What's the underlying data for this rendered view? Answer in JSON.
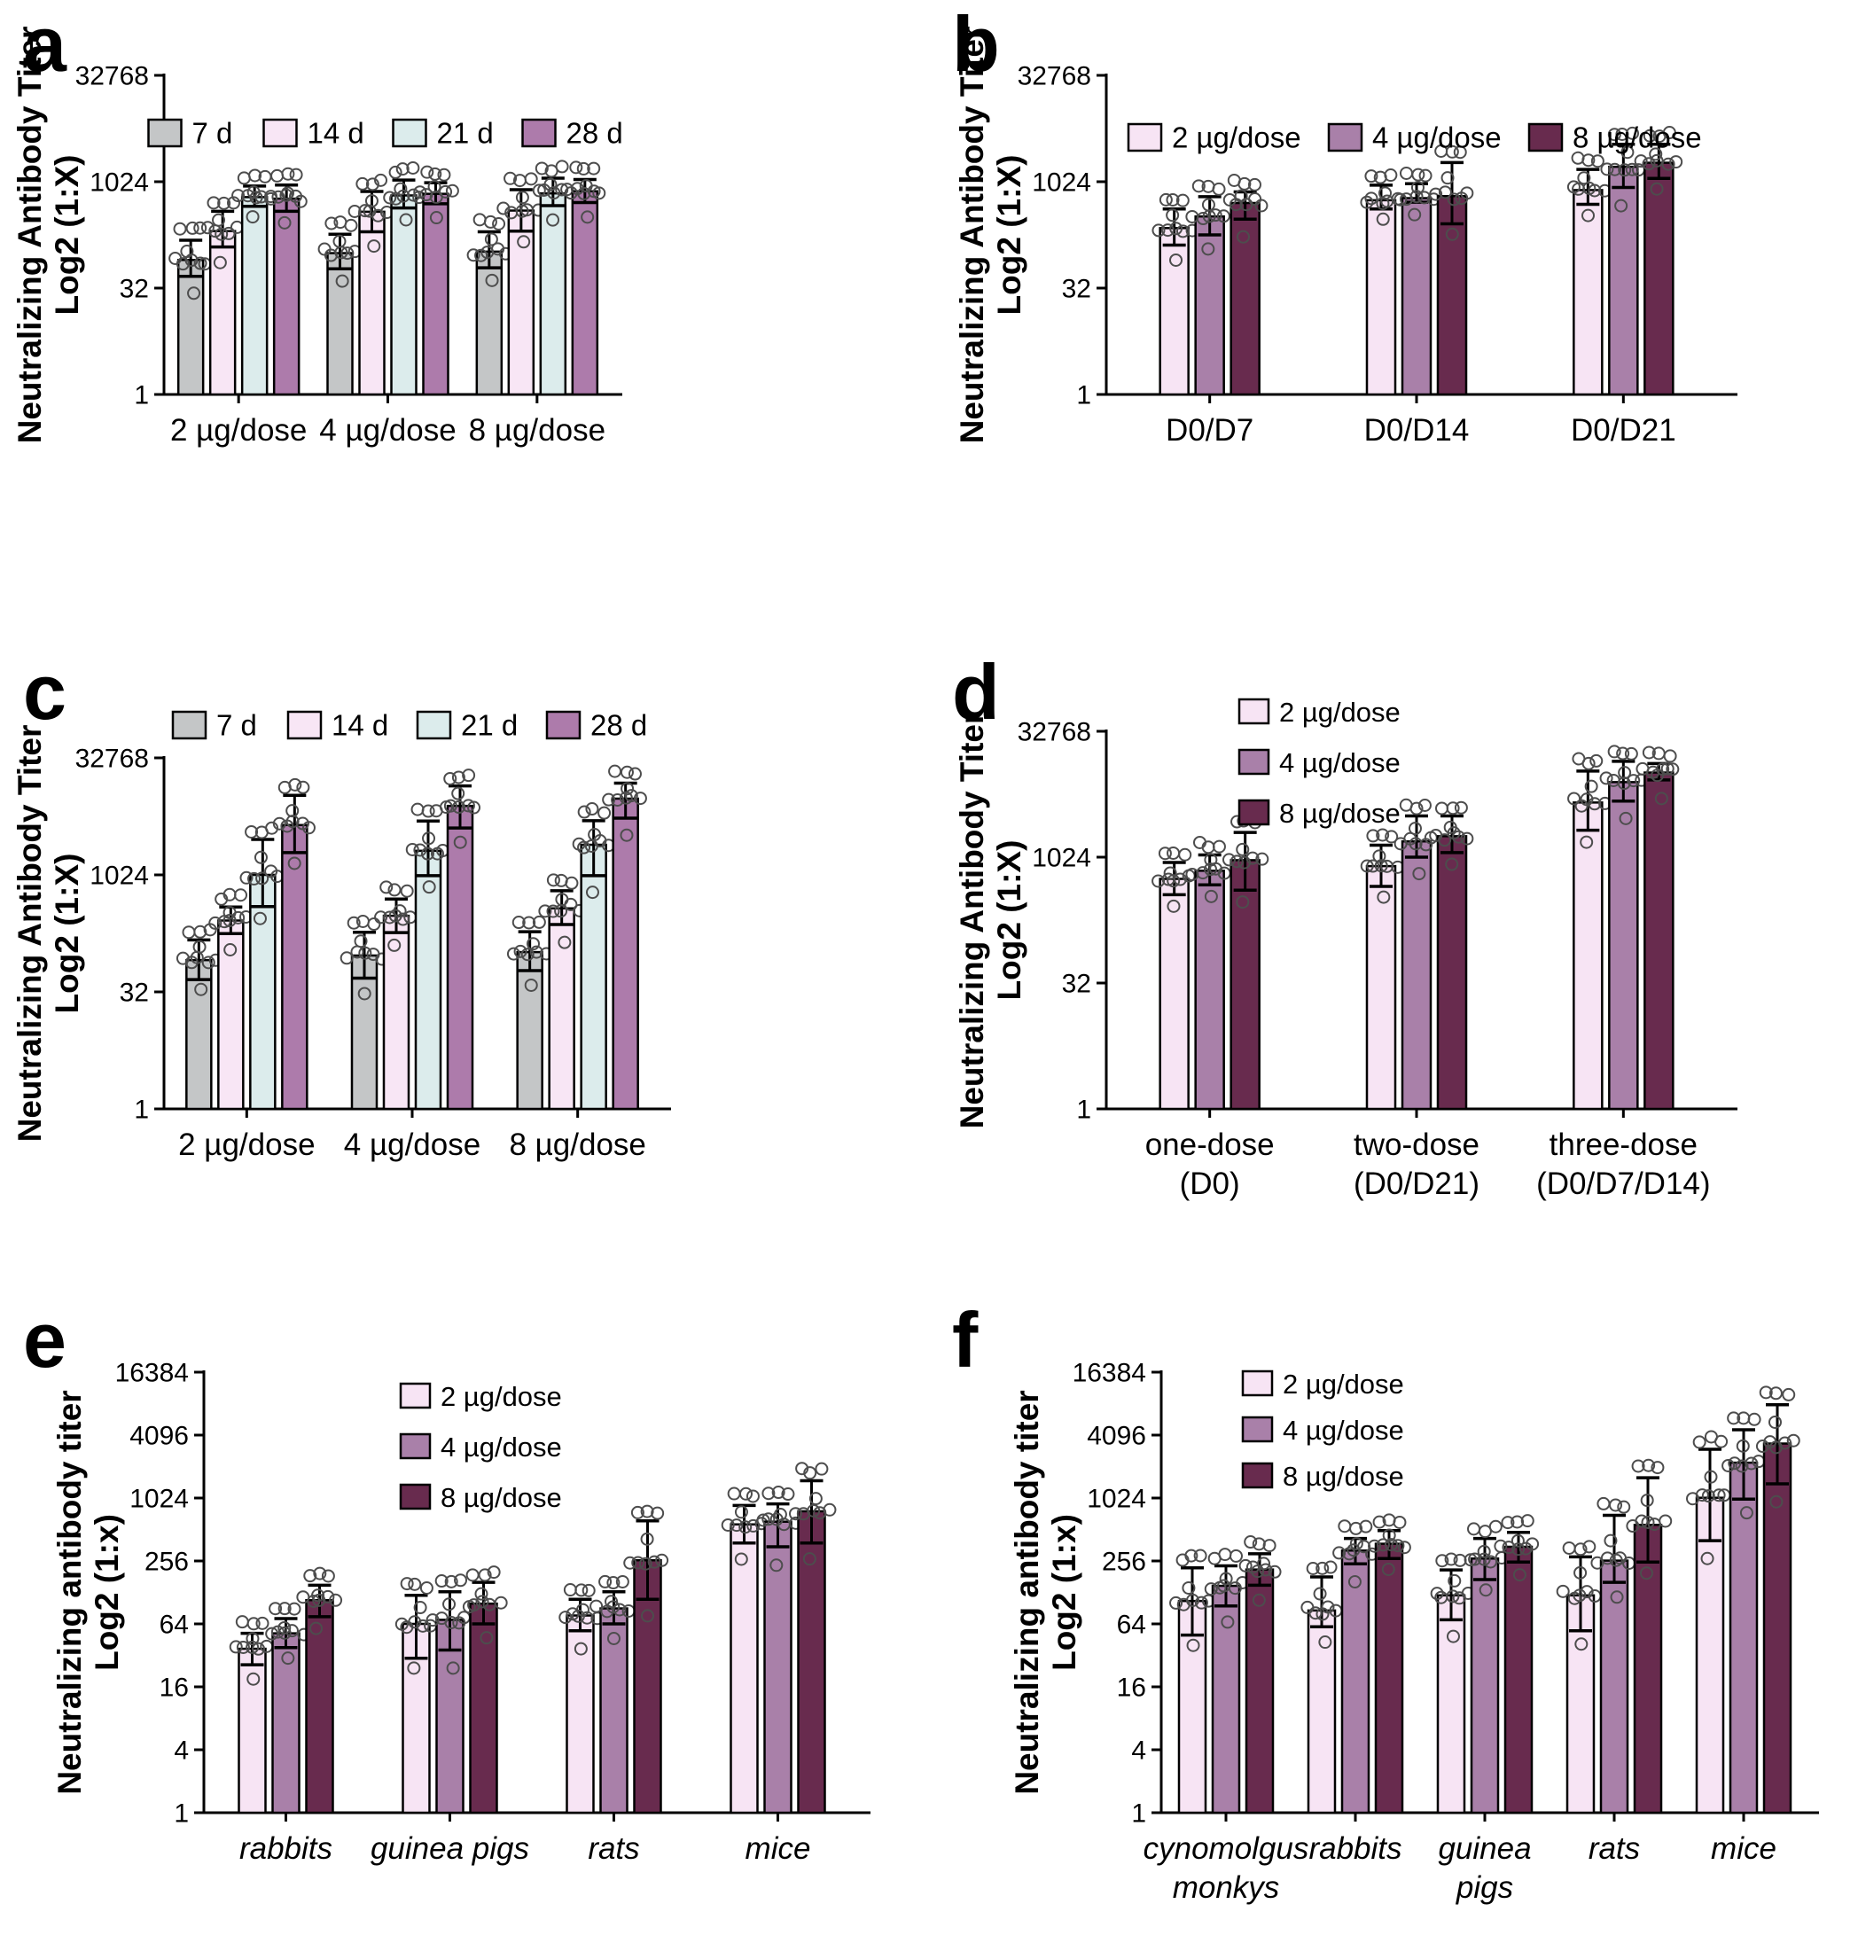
{
  "figure": {
    "background": "#ffffff"
  },
  "chart_data": [
    {
      "panel_label": "a",
      "type": "bar",
      "log_scale": "log2",
      "ylabel": [
        "Neutralizing Antibody Titer",
        "Log2 (1:X)"
      ],
      "yticks": [
        32768,
        1024,
        32,
        1
      ],
      "ylim": [
        1,
        32768
      ],
      "categories": [
        "2 µg/dose",
        "4 µg/dose",
        "8 µg/dose"
      ],
      "categories_italic": false,
      "legend_layout": "row",
      "points_per_bar": 10,
      "series": [
        {
          "name": "7 d",
          "color": "#c4c6c7",
          "values": [
            80,
            100,
            105
          ],
          "err_low": [
            47,
            60,
            62
          ],
          "err_high": [
            152,
            185,
            200
          ]
        },
        {
          "name": "14 d",
          "color": "#f8e6f5",
          "values": [
            205,
            385,
            400
          ],
          "err_low": [
            122,
            200,
            205
          ],
          "err_high": [
            390,
            745,
            790
          ]
        },
        {
          "name": "21 d",
          "color": "#dcecec",
          "values": [
            620,
            655,
            700
          ],
          "err_low": [
            460,
            435,
            470
          ],
          "err_high": [
            890,
            1080,
            1150
          ]
        },
        {
          "name": "28 d",
          "color": "#ad7bab",
          "values": [
            590,
            690,
            750
          ],
          "err_low": [
            390,
            500,
            520
          ],
          "err_high": [
            920,
            990,
            1100
          ]
        }
      ]
    },
    {
      "panel_label": "b",
      "type": "bar",
      "log_scale": "log2",
      "ylabel": [
        "Neutralizing Antibody Titer",
        "Log2 (1:X)"
      ],
      "yticks": [
        32768,
        1024,
        32,
        1
      ],
      "ylim": [
        1,
        32768
      ],
      "categories": [
        "D0/D7",
        "D0/D14",
        "D0/D21"
      ],
      "categories_italic": false,
      "legend_layout": "row",
      "points_per_bar": 10,
      "series": [
        {
          "name": "2 µg/dose",
          "color": "#f7e4f4",
          "values": [
            226,
            560,
            780
          ],
          "err_low": [
            130,
            422,
            490
          ],
          "err_high": [
            422,
            916,
            1530
          ]
        },
        {
          "name": "4 µg/dose",
          "color": "#a980a9",
          "values": [
            330,
            600,
            1665
          ],
          "err_low": [
            181,
            525,
            850
          ],
          "err_high": [
            630,
            960,
            3470
          ]
        },
        {
          "name": "8 µg/dose",
          "color": "#682b4e",
          "values": [
            512,
            640,
            1900
          ],
          "err_low": [
            302,
            260,
            1140
          ],
          "err_high": [
            734,
            1910,
            3470
          ]
        }
      ]
    },
    {
      "panel_label": "c",
      "type": "bar",
      "log_scale": "log2",
      "ylabel": [
        "Neutralizing Antibody Titer",
        "Log2 (1:X)"
      ],
      "yticks": [
        32768,
        1024,
        32,
        1
      ],
      "ylim": [
        1,
        32768
      ],
      "categories": [
        "2 µg/dose",
        "4 µg/dose",
        "8 µg/dose"
      ],
      "categories_italic": false,
      "legend_layout": "row",
      "points_per_bar": 10,
      "series": [
        {
          "name": "7 d",
          "color": "#c4c6c7",
          "values": [
            82,
            94,
            104
          ],
          "err_low": [
            46,
            48,
            60
          ],
          "err_high": [
            149,
            187,
            190
          ]
        },
        {
          "name": "14 d",
          "color": "#f8e6f5",
          "values": [
            265,
            305,
            380
          ],
          "err_low": [
            180,
            185,
            235
          ],
          "err_high": [
            395,
            500,
            640
          ]
        },
        {
          "name": "21 d",
          "color": "#dcecec",
          "values": [
            1024,
            2090,
            2500
          ],
          "err_low": [
            400,
            1000,
            1000
          ],
          "err_high": [
            2930,
            5040,
            5100
          ]
        },
        {
          "name": "28 d",
          "color": "#ad7bab",
          "values": [
            4480,
            7900,
            9800
          ],
          "err_low": [
            1980,
            4100,
            5500
          ],
          "err_high": [
            10800,
            14300,
            15500
          ]
        }
      ]
    },
    {
      "panel_label": "d",
      "type": "bar",
      "log_scale": "log2",
      "ylabel": [
        "Neutralizing Antibody Titer",
        "Log2 (1:X)"
      ],
      "yticks": [
        32768,
        1024,
        32,
        1
      ],
      "ylim": [
        1,
        32768
      ],
      "categories": [
        "one-dose\n(D0)",
        "two-dose\n(D0/D21)",
        "three-dose\n(D0/D7/D14)"
      ],
      "categories_italic": false,
      "legend_layout": "column",
      "points_per_bar": 10,
      "series": [
        {
          "name": "2 µg/dose",
          "color": "#f7e4f4",
          "values": [
            563,
            800,
            4610
          ],
          "err_low": [
            364,
            458,
            2150
          ],
          "err_high": [
            885,
            1425,
            10960
          ]
        },
        {
          "name": "4 µg/dose",
          "color": "#a980a9",
          "values": [
            704,
            1580,
            8080
          ],
          "err_low": [
            478,
            1024,
            4800
          ],
          "err_high": [
            1090,
            3185,
            14350
          ]
        },
        {
          "name": "8 µg/dose",
          "color": "#682b4e",
          "values": [
            942,
            1824,
            10520
          ],
          "err_low": [
            413,
            1160,
            8580
          ],
          "err_high": [
            2020,
            3185,
            13500
          ]
        }
      ]
    },
    {
      "panel_label": "e",
      "type": "bar",
      "log_scale": "log2",
      "ylabel": [
        "Neutralizing antibody titer",
        "Log2 (1:x)"
      ],
      "yticks": [
        16384,
        4096,
        1024,
        256,
        64,
        16,
        4,
        1
      ],
      "ylim": [
        1,
        16384
      ],
      "categories": [
        "rabbits",
        "guinea pigs",
        "rats",
        "mice"
      ],
      "categories_italic": true,
      "legend_layout": "column",
      "points_per_bar": 10,
      "series": [
        {
          "name": "2 µg/dose",
          "color": "#f7e4f4",
          "values": [
            37,
            64,
            77,
            573
          ],
          "err_low": [
            26,
            30,
            55,
            380
          ],
          "err_high": [
            52,
            120,
            110,
            870
          ]
        },
        {
          "name": "4 µg/dose",
          "color": "#a980a9",
          "values": [
            52,
            70,
            90,
            608
          ],
          "err_low": [
            38,
            36,
            64,
            350
          ],
          "err_high": [
            72,
            130,
            130,
            900
          ]
        },
        {
          "name": "8 µg/dose",
          "color": "#682b4e",
          "values": [
            108,
            100,
            260,
            765
          ],
          "err_low": [
            75,
            64,
            110,
            380
          ],
          "err_high": [
            150,
            160,
            620,
            1500
          ]
        }
      ]
    },
    {
      "panel_label": "f",
      "type": "bar",
      "log_scale": "log2",
      "ylabel": [
        "Neutralizing antibody titer",
        "Log2 (1:x)"
      ],
      "yticks": [
        16384,
        4096,
        1024,
        256,
        64,
        16,
        4,
        1
      ],
      "ylim": [
        1,
        16384
      ],
      "categories": [
        "cynomolgus\nmonkys",
        "rabbits",
        "guinea\npigs",
        "rats",
        "mice"
      ],
      "categories_italic": true,
      "legend_layout": "column",
      "points_per_bar": 10,
      "series": [
        {
          "name": "2 µg/dose",
          "color": "#f7e4f4",
          "values": [
            106,
            86,
            120,
            120,
            1030
          ],
          "err_low": [
            50,
            60,
            70,
            55,
            400
          ],
          "err_high": [
            220,
            180,
            210,
            280,
            3000
          ]
        },
        {
          "name": "4 µg/dose",
          "color": "#a980a9",
          "values": [
            148,
            322,
            270,
            258,
            2230
          ],
          "err_low": [
            95,
            240,
            170,
            160,
            1000
          ],
          "err_high": [
            230,
            420,
            420,
            700,
            4600
          ]
        },
        {
          "name": "8 µg/dose",
          "color": "#682b4e",
          "values": [
            212,
            374,
            350,
            567,
            3400
          ],
          "err_low": [
            150,
            270,
            250,
            250,
            1400
          ],
          "err_high": [
            300,
            500,
            480,
            1600,
            8000
          ]
        }
      ]
    }
  ]
}
